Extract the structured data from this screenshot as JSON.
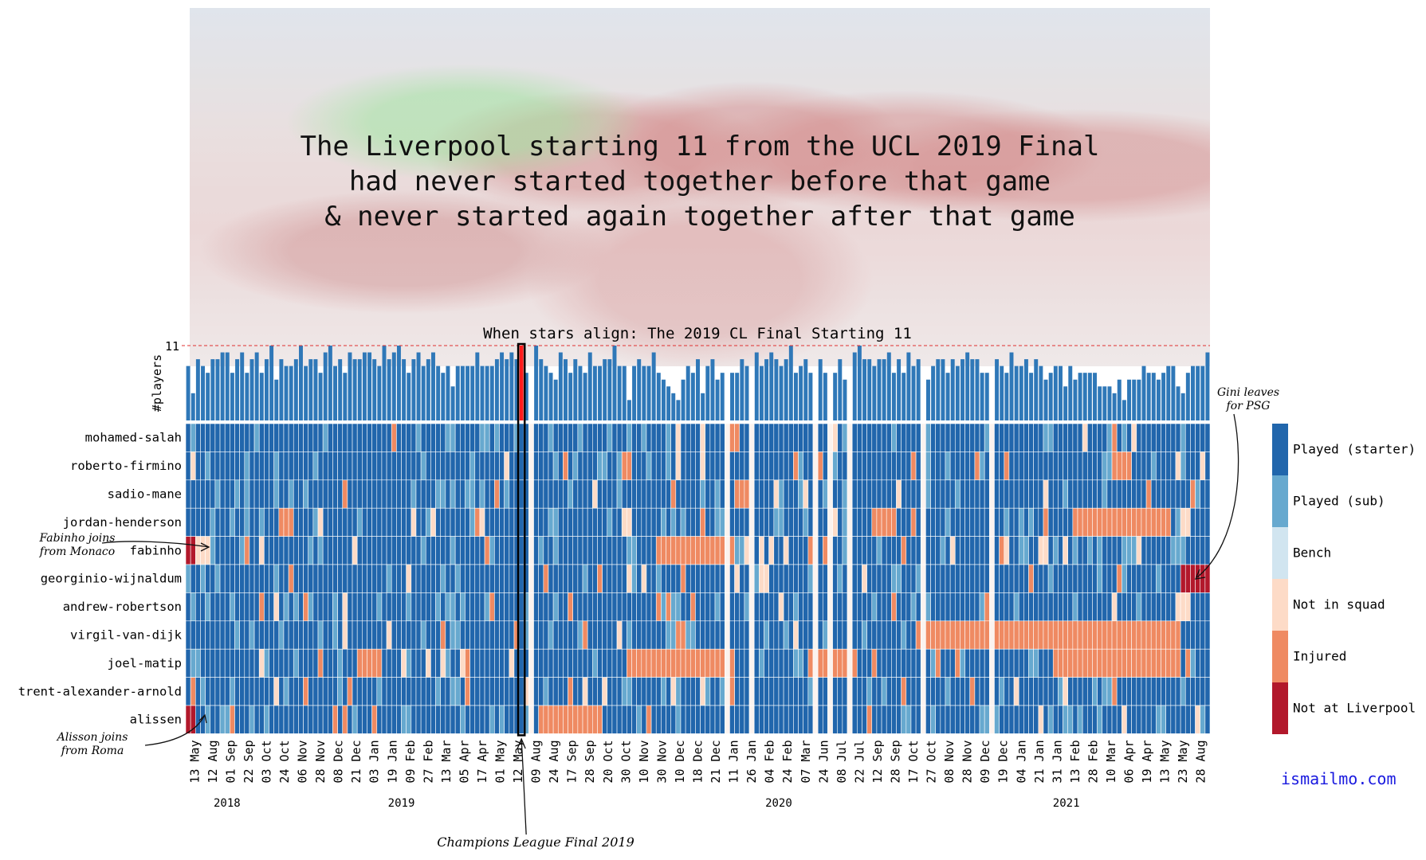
{
  "title": "The Liverpool starting 11 from the UCL 2019 Final\nhad never started together before that game\n& never started again together after that game",
  "credit": "ismailmo.com",
  "chart_data": {
    "type": "heatmap",
    "subtitle": "When stars align: The 2019 CL Final Starting 11",
    "ylabel_top": "#players",
    "top_tick": "11",
    "highlight_label": "12 May",
    "players": [
      "mohamed-salah",
      "roberto-firmino",
      "sadio-mane",
      "jordan-henderson",
      "fabinho",
      "georginio-wijnaldum",
      "andrew-robertson",
      "virgil-van-dijk",
      "joel-matip",
      "trent-alexander-arnold",
      "alissen"
    ],
    "date_ticks": [
      "13 May",
      "12 Aug",
      "01 Sep",
      "22 Sep",
      "03 Oct",
      "24 Oct",
      "06 Nov",
      "28 Nov",
      "08 Dec",
      "21 Dec",
      "03 Jan",
      "19 Jan",
      "09 Feb",
      "27 Feb",
      "13 Mar",
      "05 Apr",
      "17 Apr",
      "01 May",
      "12 May",
      "09 Aug",
      "24 Aug",
      "17 Sep",
      "28 Sep",
      "20 Oct",
      "30 Oct",
      "10 Nov",
      "30 Nov",
      "10 Dec",
      "18 Dec",
      "21 Dec",
      "11 Jan",
      "26 Jan",
      "04 Feb",
      "24 Feb",
      "07 Mar",
      "24 Jun",
      "08 Jul",
      "22 Jul",
      "12 Sep",
      "28 Sep",
      "17 Oct",
      "27 Oct",
      "08 Nov",
      "28 Nov",
      "09 Dec",
      "19 Dec",
      "04 Jan",
      "21 Jan",
      "31 Jan",
      "13 Feb",
      "28 Feb",
      "10 Mar",
      "06 Apr",
      "19 Apr",
      "13 May",
      "23 May",
      "28 Aug"
    ],
    "years": [
      {
        "label": "2018",
        "tick": 1.8
      },
      {
        "label": "2019",
        "tick": 11.5
      },
      {
        "label": "2020",
        "tick": 32.5
      },
      {
        "label": "2021",
        "tick": 48.5
      }
    ],
    "legend": [
      {
        "label": "Played (starter)",
        "color": "#2166ac"
      },
      {
        "label": "Played (sub)",
        "color": "#67a9cf"
      },
      {
        "label": "Bench",
        "color": "#d1e5f0"
      },
      {
        "label": "Not in squad",
        "color": "#fddbc7"
      },
      {
        "label": "Injured",
        "color": "#ef8a62"
      },
      {
        "label": "Not at Liverpool",
        "color": "#b2182b"
      }
    ],
    "annotations": [
      {
        "label": "Fabinho joins\nfrom Monaco"
      },
      {
        "label": "Alisson joins\nfrom Roma"
      },
      {
        "label": "Gini leaves\nfor PSG"
      },
      {
        "label": "Champions League Final 2019"
      }
    ],
    "num_matches": 209,
    "final_match_index": 68
  }
}
